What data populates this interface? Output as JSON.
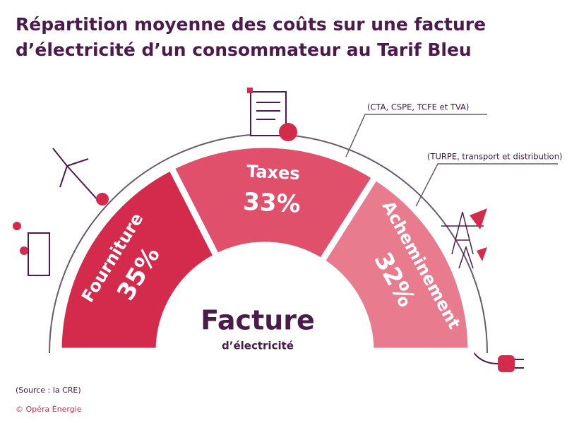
{
  "chart_data": {
    "type": "half-donut",
    "title": [
      "Répartition moyenne des coûts sur une facture",
      "d’électricité d’un consommateur au Tarif Bleu"
    ],
    "categories": [
      "Fourniture",
      "Taxes",
      "Acheminement"
    ],
    "values": [
      35,
      33,
      32
    ],
    "value_labels": [
      "35%",
      "33%",
      "32%"
    ],
    "colors": [
      "#d42a4b",
      "#e0506a",
      "#e87c8e"
    ],
    "annotations": [
      "(CTA, CSPE, TCFE et TVA)",
      "(TURPE, transport et distribution)"
    ],
    "center_label": [
      "Facture",
      "d’électricité"
    ],
    "source": "(Source : la CRE)",
    "credit": "© Opéra Énergie"
  }
}
